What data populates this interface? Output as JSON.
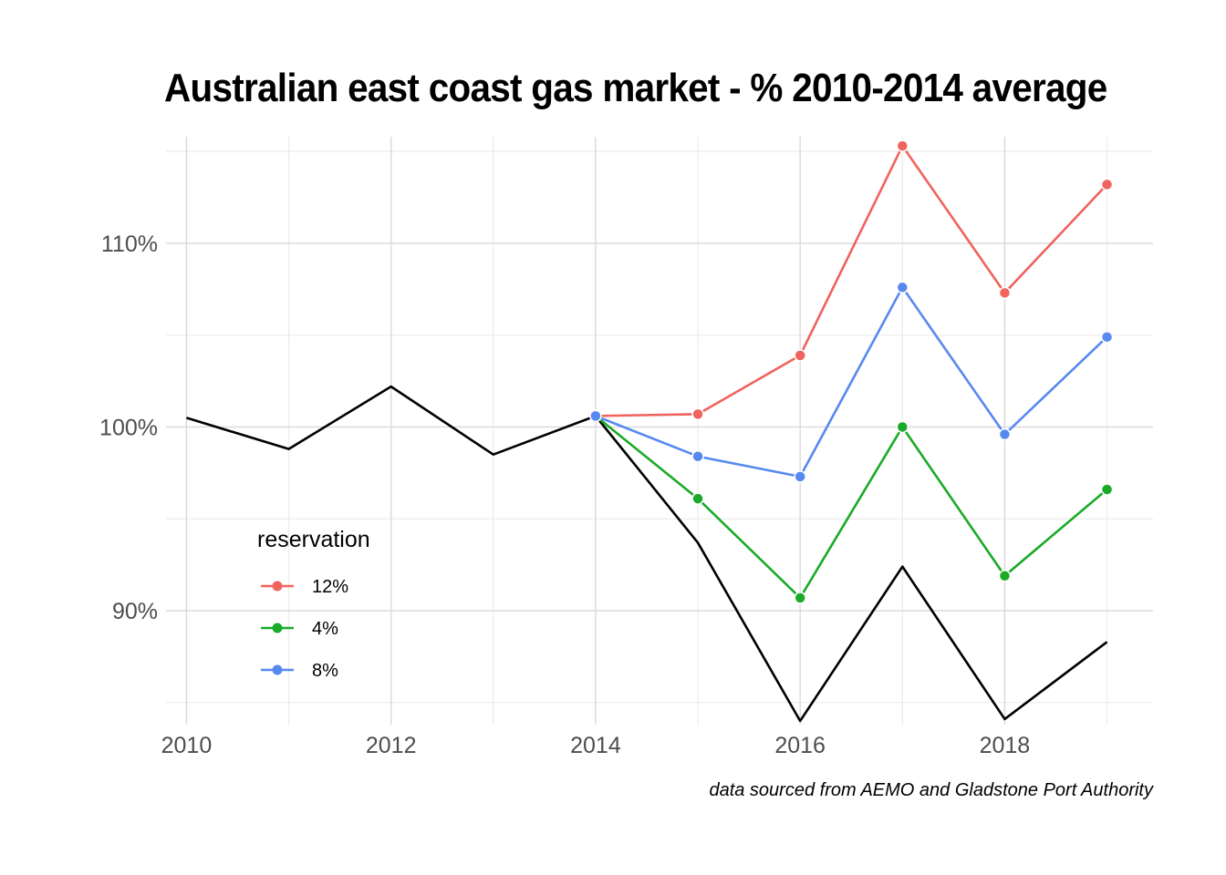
{
  "chart_data": {
    "type": "line",
    "title": "Australian east coast gas market -  % 2010-2014 average",
    "caption": "data sourced from AEMO and Gladstone Port Authority",
    "xlabel": "",
    "ylabel": "",
    "xlim": [
      2009.8,
      2019.45
    ],
    "ylim": [
      83.8,
      115.8
    ],
    "x_ticks": [
      2010,
      2012,
      2014,
      2016,
      2018
    ],
    "x_tick_labels": [
      "2010",
      "2012",
      "2014",
      "2016",
      "2018"
    ],
    "x_minor_gridlines": [
      2011,
      2013,
      2015,
      2017,
      2019
    ],
    "y_ticks": [
      90,
      100,
      110
    ],
    "y_tick_labels": [
      "90%",
      "100%",
      "110%"
    ],
    "y_minor_gridlines": [
      85,
      95,
      105,
      115
    ],
    "grid": true,
    "legend": {
      "title": "reservation",
      "position": "inside-bottom-left",
      "entries": [
        "12%",
        "4%",
        "8%"
      ]
    },
    "baseline": {
      "color": "#000000",
      "x": [
        2010,
        2011,
        2012,
        2013,
        2014,
        2015,
        2016,
        2017,
        2018,
        2019
      ],
      "values": [
        100.5,
        98.8,
        102.2,
        98.5,
        100.6,
        93.7,
        84.0,
        92.4,
        84.1,
        88.3
      ]
    },
    "series": [
      {
        "name": "12%",
        "color": "#F0635E",
        "x": [
          2014,
          2015,
          2016,
          2017,
          2018,
          2019
        ],
        "values": [
          100.6,
          100.7,
          103.9,
          115.3,
          107.3,
          113.2
        ]
      },
      {
        "name": "4%",
        "color": "#1AAA28",
        "x": [
          2014,
          2015,
          2016,
          2017,
          2018,
          2019
        ],
        "values": [
          100.6,
          96.1,
          90.7,
          100.0,
          91.9,
          96.6
        ]
      },
      {
        "name": "8%",
        "color": "#5889F0",
        "x": [
          2014,
          2015,
          2016,
          2017,
          2018,
          2019
        ],
        "values": [
          100.6,
          98.4,
          97.3,
          107.6,
          99.6,
          104.9
        ]
      }
    ]
  }
}
